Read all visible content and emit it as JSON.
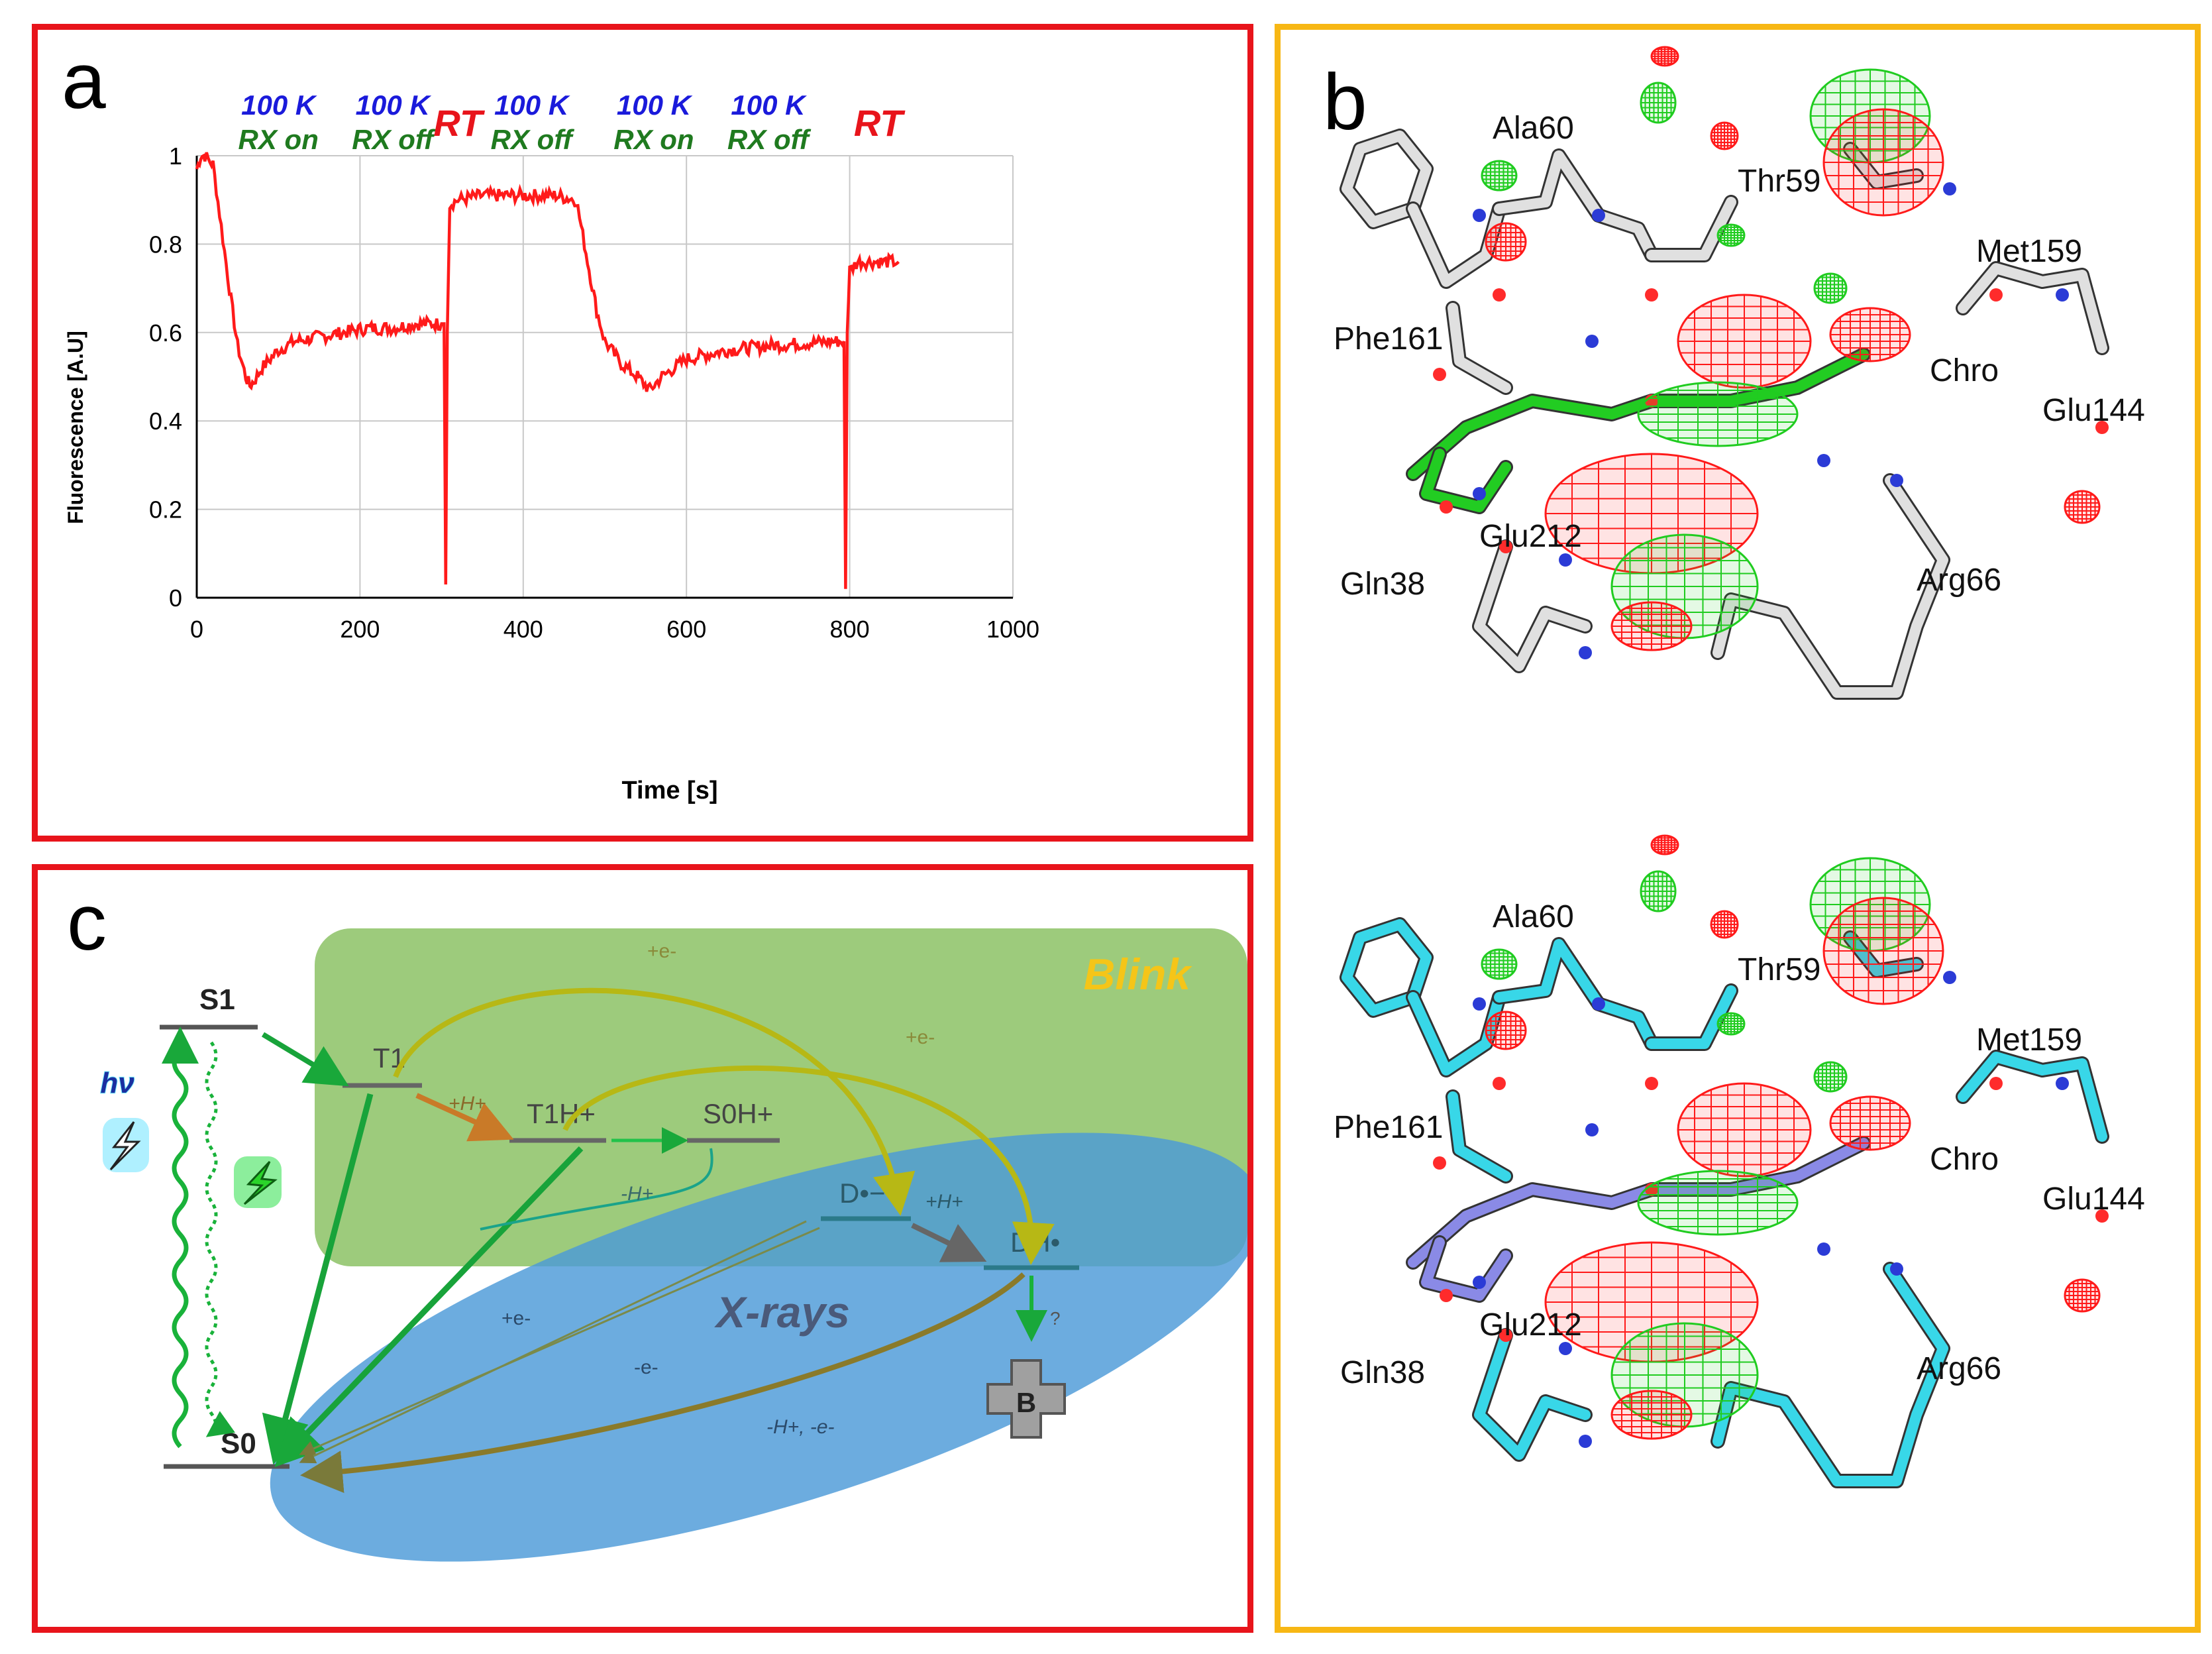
{
  "panel_a": {
    "letter": "a",
    "annotations": [
      {
        "line1": "100 K",
        "line2": "RX on",
        "t": 100
      },
      {
        "line1": "100 K",
        "line2": "RX off",
        "t": 240
      },
      {
        "line1": "RT",
        "line2": "",
        "t": 320
      },
      {
        "line1": "100 K",
        "line2": "RX off",
        "t": 410
      },
      {
        "line1": "100 K",
        "line2": "RX on",
        "t": 560
      },
      {
        "line1": "100 K",
        "line2": "RX off",
        "t": 700
      },
      {
        "line1": "RT",
        "line2": "",
        "t": 835
      }
    ],
    "colors": {
      "k_label": "#1a1adb",
      "rx_label": "#1f7a1f",
      "rt_label": "#e8141b",
      "trace": "#ff1a1a",
      "grid": "#c8c8c8"
    }
  },
  "chart_data": {
    "type": "line",
    "title": "",
    "xlabel": "Time [s]",
    "ylabel": "Fluorescence [A.U]",
    "xlim": [
      0,
      1000
    ],
    "ylim": [
      0,
      1
    ],
    "xticks": [
      0,
      200,
      400,
      600,
      800,
      1000
    ],
    "yticks": [
      0,
      0.2,
      0.4,
      0.6,
      0.8,
      1
    ],
    "grid": true,
    "series": [
      {
        "x": [
          0,
          5,
          10,
          20,
          30,
          40,
          50,
          60,
          65,
          70,
          80,
          100,
          120,
          150,
          180,
          210,
          240,
          270,
          300,
          303,
          305,
          307,
          310,
          320,
          350,
          400,
          440,
          465,
          475,
          490,
          500,
          520,
          540,
          555,
          570,
          600,
          650,
          700,
          780,
          793,
          795,
          797,
          800,
          810,
          830,
          860
        ],
        "y": [
          0.97,
          1.0,
          1.0,
          0.98,
          0.84,
          0.7,
          0.57,
          0.5,
          0.48,
          0.49,
          0.52,
          0.56,
          0.58,
          0.59,
          0.6,
          0.61,
          0.61,
          0.62,
          0.62,
          0.62,
          0.03,
          0.6,
          0.89,
          0.9,
          0.91,
          0.91,
          0.91,
          0.9,
          0.8,
          0.65,
          0.58,
          0.53,
          0.5,
          0.47,
          0.5,
          0.54,
          0.56,
          0.57,
          0.58,
          0.58,
          0.02,
          0.6,
          0.74,
          0.76,
          0.76,
          0.76
        ]
      }
    ]
  },
  "panel_b": {
    "letter": "b",
    "top_labels": [
      "Ala60",
      "Thr59",
      "Met159",
      "Phe161",
      "Chro",
      "Glu144",
      "Glu212",
      "Gln38",
      "Arg66"
    ],
    "bottom_labels": [
      "Ala60",
      "Thr59",
      "Met159",
      "Phe161",
      "Chro",
      "Glu144",
      "Glu212",
      "Gln38",
      "Arg66"
    ],
    "colors": {
      "carbon_top": "#e0e0e0",
      "carbon_bottom": "#38d7e8",
      "chromophore_top": "#22cc22",
      "chromophore_bottom": "#8a8ae6",
      "oxygen": "#ff2b2b",
      "nitrogen": "#2b3bd6",
      "positive_map": "#20cc20",
      "negative_map": "#ff1a1a"
    }
  },
  "panel_c": {
    "letter": "c",
    "states": {
      "s1": "S1",
      "s0": "S0",
      "t1": "T1",
      "t1h": "T1H+",
      "s0h": "S0H+",
      "d": "D•−",
      "dh": "DH•",
      "b": "B"
    },
    "labels": {
      "blink": "Blink",
      "xrays": "X-rays",
      "hv": "hν",
      "plus_h_1": "+H+",
      "plus_h_2": "+H+",
      "minus_h": "-H+",
      "plus_e_1": "+e-",
      "plus_e_2": "+e-",
      "plus_e_3": "+e-",
      "minus_e": "-e-",
      "minus_h_minus_e": "-H+, -e-",
      "question": "?"
    },
    "colors": {
      "blink_box": "#8cc265",
      "xray_ellipse": "#4c9ad8",
      "blink_text": "#f5c518",
      "xray_text": "#4a5a7a",
      "hv_text": "#1b2fa0"
    }
  }
}
